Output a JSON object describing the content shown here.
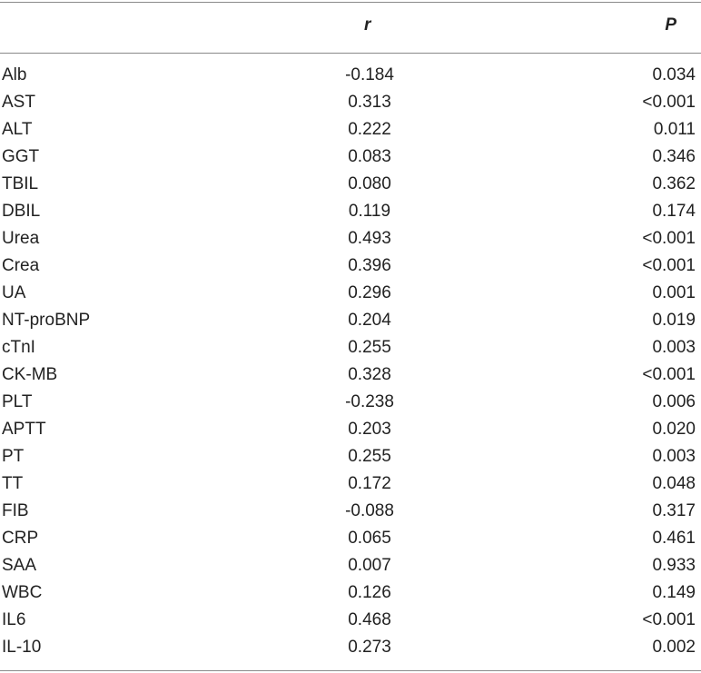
{
  "table": {
    "headers": {
      "name": "",
      "r": "r",
      "p": "P"
    },
    "rows": [
      {
        "name": "Alb",
        "r": "-0.184",
        "p": "0.034"
      },
      {
        "name": "AST",
        "r": "0.313",
        "p": "<0.001"
      },
      {
        "name": "ALT",
        "r": "0.222",
        "p": "0.011"
      },
      {
        "name": "GGT",
        "r": "0.083",
        "p": "0.346"
      },
      {
        "name": "TBIL",
        "r": "0.080",
        "p": "0.362"
      },
      {
        "name": "DBIL",
        "r": "0.119",
        "p": "0.174"
      },
      {
        "name": "Urea",
        "r": "0.493",
        "p": "<0.001"
      },
      {
        "name": "Crea",
        "r": "0.396",
        "p": "<0.001"
      },
      {
        "name": "UA",
        "r": "0.296",
        "p": "0.001"
      },
      {
        "name": "NT-proBNP",
        "r": "0.204",
        "p": "0.019"
      },
      {
        "name": "cTnI",
        "r": "0.255",
        "p": "0.003"
      },
      {
        "name": "CK-MB",
        "r": "0.328",
        "p": "<0.001"
      },
      {
        "name": "PLT",
        "r": "-0.238",
        "p": "0.006"
      },
      {
        "name": "APTT",
        "r": "0.203",
        "p": "0.020"
      },
      {
        "name": "PT",
        "r": "0.255",
        "p": "0.003"
      },
      {
        "name": "TT",
        "r": "0.172",
        "p": "0.048"
      },
      {
        "name": "FIB",
        "r": "-0.088",
        "p": "0.317"
      },
      {
        "name": "CRP",
        "r": "0.065",
        "p": "0.461"
      },
      {
        "name": "SAA",
        "r": "0.007",
        "p": "0.933"
      },
      {
        "name": "WBC",
        "r": "0.126",
        "p": "0.149"
      },
      {
        "name": "IL6",
        "r": "0.468",
        "p": "<0.001"
      },
      {
        "name": "IL-10",
        "r": "0.273",
        "p": "0.002"
      }
    ]
  },
  "colors": {
    "text": "#222222",
    "rule": "#8a8a8a",
    "background": "#ffffff"
  }
}
